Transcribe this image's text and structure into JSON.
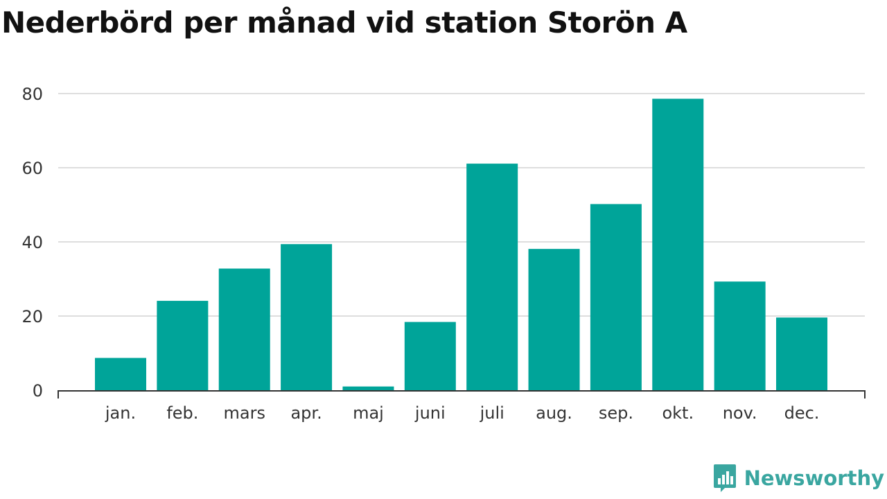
{
  "chart_data": {
    "type": "bar",
    "title": "Nederbörd per månad vid station Storön A",
    "categories": [
      "jan.",
      "feb.",
      "mars",
      "apr.",
      "maj",
      "juni",
      "juli",
      "aug.",
      "sep.",
      "okt.",
      "nov.",
      "dec."
    ],
    "values": [
      8.7,
      24.1,
      32.8,
      39.4,
      1.0,
      18.4,
      61.1,
      38.1,
      50.2,
      78.6,
      29.3,
      19.6
    ],
    "xlabel": "",
    "ylabel": "",
    "ylim": [
      0,
      80
    ],
    "yticks": [
      0,
      20,
      40,
      60,
      80
    ],
    "grid": true,
    "bar_color": "#00a499"
  },
  "brand": {
    "name": "Newsworthy",
    "icon": "newsworthy-logo-icon",
    "color": "#3aa6a0"
  }
}
